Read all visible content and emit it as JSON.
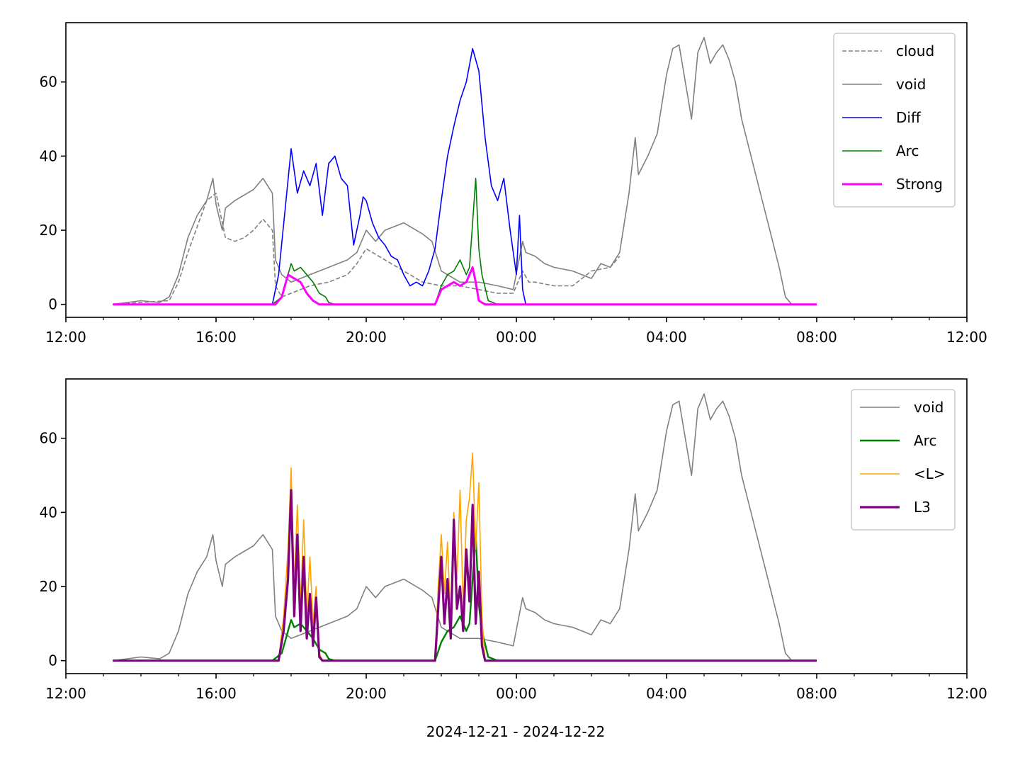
{
  "chart_data": [
    {
      "type": "line",
      "title": "",
      "xlabel": "",
      "ylabel": "",
      "xlim": [
        "2024-12-21 12:00",
        "2024-12-22 12:00"
      ],
      "ylim": [
        -3.5,
        76
      ],
      "xticks": [
        "12:00",
        "16:00",
        "20:00",
        "00:00",
        "04:00",
        "08:00",
        "12:00"
      ],
      "yticks": [
        0,
        20,
        40,
        60
      ],
      "legend_position": "top-right",
      "series": [
        {
          "name": "cloud",
          "color": "#808080",
          "style": "dashed",
          "x": [
            "13:15",
            "14:00",
            "14:45",
            "15:00",
            "15:15",
            "15:30",
            "15:45",
            "16:00",
            "16:15",
            "16:30",
            "16:45",
            "17:00",
            "17:15",
            "17:30",
            "17:35",
            "17:45",
            "18:00",
            "18:15",
            "18:30",
            "19:00",
            "19:30",
            "19:45",
            "20:00",
            "20:30",
            "21:00",
            "21:30",
            "22:00",
            "22:30",
            "23:00",
            "23:30",
            "23:55",
            "00:10",
            "00:20",
            "00:30",
            "01:00",
            "01:30",
            "02:00",
            "02:30",
            "02:45"
          ],
          "y": [
            0,
            0.5,
            1,
            6,
            14,
            21,
            28,
            30,
            18,
            17,
            18,
            20,
            23,
            20,
            5,
            2,
            3,
            4,
            5,
            6,
            8,
            11,
            15,
            12,
            9,
            6,
            5,
            5,
            4,
            3,
            3,
            9,
            6,
            6,
            5,
            5,
            9,
            10,
            13
          ]
        },
        {
          "name": "void",
          "color": "#808080",
          "style": "solid",
          "x": [
            "13:15",
            "14:00",
            "14:30",
            "14:45",
            "15:00",
            "15:15",
            "15:30",
            "15:45",
            "15:55",
            "16:00",
            "16:10",
            "16:15",
            "16:30",
            "17:00",
            "17:15",
            "17:30",
            "17:35",
            "17:45",
            "18:00",
            "18:15",
            "18:30",
            "19:00",
            "19:30",
            "19:45",
            "20:00",
            "20:15",
            "20:30",
            "21:00",
            "21:30",
            "21:45",
            "22:00",
            "22:30",
            "23:00",
            "23:30",
            "23:55",
            "00:10",
            "00:15",
            "00:30",
            "00:45",
            "01:00",
            "01:30",
            "02:00",
            "02:15",
            "02:30",
            "02:45",
            "03:00",
            "03:10",
            "03:15",
            "03:30",
            "03:45",
            "04:00",
            "04:10",
            "04:20",
            "04:30",
            "04:40",
            "04:50",
            "05:00",
            "05:10",
            "05:20",
            "05:30",
            "05:40",
            "05:50",
            "06:00",
            "06:15",
            "06:30",
            "06:45",
            "07:00",
            "07:10",
            "07:20",
            "08:00"
          ],
          "y": [
            0,
            1,
            0.5,
            2,
            8,
            18,
            24,
            28,
            34,
            27,
            20,
            26,
            28,
            31,
            34,
            30,
            12,
            8,
            6,
            7,
            8,
            10,
            12,
            14,
            20,
            17,
            20,
            22,
            19,
            17,
            9,
            6,
            6,
            5,
            4,
            17,
            14,
            13,
            11,
            10,
            9,
            7,
            11,
            10,
            14,
            30,
            45,
            35,
            40,
            46,
            62,
            69,
            70,
            60,
            50,
            68,
            72,
            65,
            68,
            70,
            66,
            60,
            50,
            40,
            30,
            20,
            10,
            2,
            0,
            0
          ]
        },
        {
          "name": "Diff",
          "color": "#0000ff",
          "style": "solid",
          "x": [
            "13:15",
            "17:30",
            "17:40",
            "17:50",
            "18:00",
            "18:10",
            "18:20",
            "18:30",
            "18:40",
            "18:50",
            "19:00",
            "19:10",
            "19:20",
            "19:30",
            "19:40",
            "19:50",
            "19:55",
            "20:00",
            "20:10",
            "20:20",
            "20:30",
            "20:40",
            "20:50",
            "21:00",
            "21:10",
            "21:20",
            "21:30",
            "21:40",
            "21:50",
            "22:00",
            "22:10",
            "22:20",
            "22:30",
            "22:40",
            "22:50",
            "23:00",
            "23:10",
            "23:20",
            "23:30",
            "23:40",
            "23:50",
            "00:00",
            "00:05",
            "00:10",
            "00:15",
            "08:00"
          ],
          "y": [
            0,
            0,
            8,
            25,
            42,
            30,
            36,
            32,
            38,
            24,
            38,
            40,
            34,
            32,
            16,
            24,
            29,
            28,
            22,
            18,
            16,
            13,
            12,
            8,
            5,
            6,
            5,
            9,
            15,
            28,
            40,
            48,
            55,
            60,
            69,
            63,
            45,
            32,
            28,
            34,
            20,
            8,
            24,
            4,
            0,
            0
          ]
        },
        {
          "name": "Arc",
          "color": "#008000",
          "style": "solid",
          "x": [
            "13:15",
            "17:30",
            "17:45",
            "17:55",
            "18:00",
            "18:05",
            "18:15",
            "18:25",
            "18:35",
            "18:45",
            "18:55",
            "19:00",
            "19:10",
            "19:30",
            "21:50",
            "22:00",
            "22:10",
            "22:20",
            "22:30",
            "22:40",
            "22:45",
            "22:50",
            "22:55",
            "23:00",
            "23:05",
            "23:15",
            "23:30",
            "08:00"
          ],
          "y": [
            0,
            0,
            2,
            8,
            11,
            9,
            10,
            8,
            6,
            3,
            2,
            0.5,
            0,
            0,
            0,
            5,
            8,
            9,
            12,
            8,
            10,
            22,
            34,
            15,
            8,
            1,
            0,
            0
          ]
        },
        {
          "name": "Strong",
          "color": "#ff00ff",
          "style": "solid",
          "x": [
            "13:15",
            "17:35",
            "17:45",
            "17:55",
            "18:05",
            "18:15",
            "18:25",
            "18:35",
            "18:45",
            "21:50",
            "22:00",
            "22:10",
            "22:20",
            "22:30",
            "22:40",
            "22:50",
            "22:55",
            "23:00",
            "23:10",
            "08:00"
          ],
          "y": [
            0,
            0,
            2,
            8,
            7,
            6,
            3,
            1,
            0,
            0,
            4,
            5,
            6,
            5,
            6,
            10,
            6,
            1,
            0,
            0
          ]
        }
      ]
    },
    {
      "type": "line",
      "title": "",
      "xlabel": "2024-12-21 - 2024-12-22",
      "ylabel": "",
      "xlim": [
        "2024-12-21 12:00",
        "2024-12-22 12:00"
      ],
      "ylim": [
        -3.5,
        76
      ],
      "xticks": [
        "12:00",
        "16:00",
        "20:00",
        "00:00",
        "04:00",
        "08:00",
        "12:00"
      ],
      "yticks": [
        0,
        20,
        40,
        60
      ],
      "legend_position": "top-right",
      "series": [
        {
          "name": "void",
          "color": "#808080",
          "style": "solid",
          "x": [
            "13:15",
            "14:00",
            "14:30",
            "14:45",
            "15:00",
            "15:15",
            "15:30",
            "15:45",
            "15:55",
            "16:00",
            "16:10",
            "16:15",
            "16:30",
            "17:00",
            "17:15",
            "17:30",
            "17:35",
            "17:45",
            "18:00",
            "18:15",
            "18:30",
            "19:00",
            "19:30",
            "19:45",
            "20:00",
            "20:15",
            "20:30",
            "21:00",
            "21:30",
            "21:45",
            "22:00",
            "22:30",
            "23:00",
            "23:30",
            "23:55",
            "00:10",
            "00:15",
            "00:30",
            "00:45",
            "01:00",
            "01:30",
            "02:00",
            "02:15",
            "02:30",
            "02:45",
            "03:00",
            "03:10",
            "03:15",
            "03:30",
            "03:45",
            "04:00",
            "04:10",
            "04:20",
            "04:30",
            "04:40",
            "04:50",
            "05:00",
            "05:10",
            "05:20",
            "05:30",
            "05:40",
            "05:50",
            "06:00",
            "06:15",
            "06:30",
            "06:45",
            "07:00",
            "07:10",
            "07:20",
            "08:00"
          ],
          "y": [
            0,
            1,
            0.5,
            2,
            8,
            18,
            24,
            28,
            34,
            27,
            20,
            26,
            28,
            31,
            34,
            30,
            12,
            8,
            6,
            7,
            8,
            10,
            12,
            14,
            20,
            17,
            20,
            22,
            19,
            17,
            9,
            6,
            6,
            5,
            4,
            17,
            14,
            13,
            11,
            10,
            9,
            7,
            11,
            10,
            14,
            30,
            45,
            35,
            40,
            46,
            62,
            69,
            70,
            60,
            50,
            68,
            72,
            65,
            68,
            70,
            66,
            60,
            50,
            40,
            30,
            20,
            10,
            2,
            0,
            0
          ]
        },
        {
          "name": "Arc",
          "color": "#008000",
          "style": "solid",
          "x": [
            "13:15",
            "17:30",
            "17:45",
            "17:55",
            "18:00",
            "18:05",
            "18:15",
            "18:25",
            "18:35",
            "18:45",
            "18:55",
            "19:00",
            "19:10",
            "19:30",
            "21:50",
            "22:00",
            "22:10",
            "22:20",
            "22:30",
            "22:40",
            "22:45",
            "22:50",
            "22:55",
            "23:00",
            "23:05",
            "23:15",
            "23:30",
            "08:00"
          ],
          "y": [
            0,
            0,
            2,
            8,
            11,
            9,
            10,
            8,
            6,
            3,
            2,
            0.5,
            0,
            0,
            0,
            5,
            8,
            9,
            12,
            8,
            10,
            22,
            34,
            15,
            8,
            1,
            0,
            0
          ]
        },
        {
          "name": "<L>",
          "color": "#ffa500",
          "style": "solid",
          "x": [
            "13:15",
            "17:40",
            "17:48",
            "17:55",
            "18:00",
            "18:05",
            "18:10",
            "18:15",
            "18:20",
            "18:25",
            "18:30",
            "18:35",
            "18:40",
            "18:45",
            "18:50",
            "21:50",
            "21:55",
            "22:00",
            "22:05",
            "22:10",
            "22:15",
            "22:20",
            "22:25",
            "22:30",
            "22:35",
            "22:40",
            "22:45",
            "22:50",
            "22:55",
            "23:00",
            "23:05",
            "23:10",
            "08:00"
          ],
          "y": [
            0,
            0,
            12,
            30,
            52,
            20,
            42,
            15,
            38,
            12,
            28,
            10,
            20,
            2,
            0,
            0,
            20,
            34,
            18,
            32,
            10,
            40,
            22,
            46,
            14,
            38,
            44,
            56,
            30,
            48,
            12,
            0,
            0
          ]
        },
        {
          "name": "L3",
          "color": "#800080",
          "style": "solid",
          "x": [
            "13:15",
            "17:40",
            "17:48",
            "17:55",
            "18:00",
            "18:05",
            "18:10",
            "18:15",
            "18:20",
            "18:25",
            "18:30",
            "18:35",
            "18:40",
            "18:45",
            "18:50",
            "21:50",
            "21:55",
            "22:00",
            "22:05",
            "22:10",
            "22:15",
            "22:20",
            "22:25",
            "22:30",
            "22:35",
            "22:40",
            "22:45",
            "22:50",
            "22:55",
            "23:00",
            "23:05",
            "23:10",
            "08:00"
          ],
          "y": [
            0,
            0,
            8,
            22,
            46,
            12,
            34,
            8,
            28,
            6,
            18,
            4,
            17,
            1,
            0,
            0,
            14,
            28,
            10,
            22,
            6,
            38,
            14,
            20,
            8,
            30,
            16,
            42,
            10,
            24,
            4,
            0,
            0
          ]
        }
      ]
    }
  ]
}
